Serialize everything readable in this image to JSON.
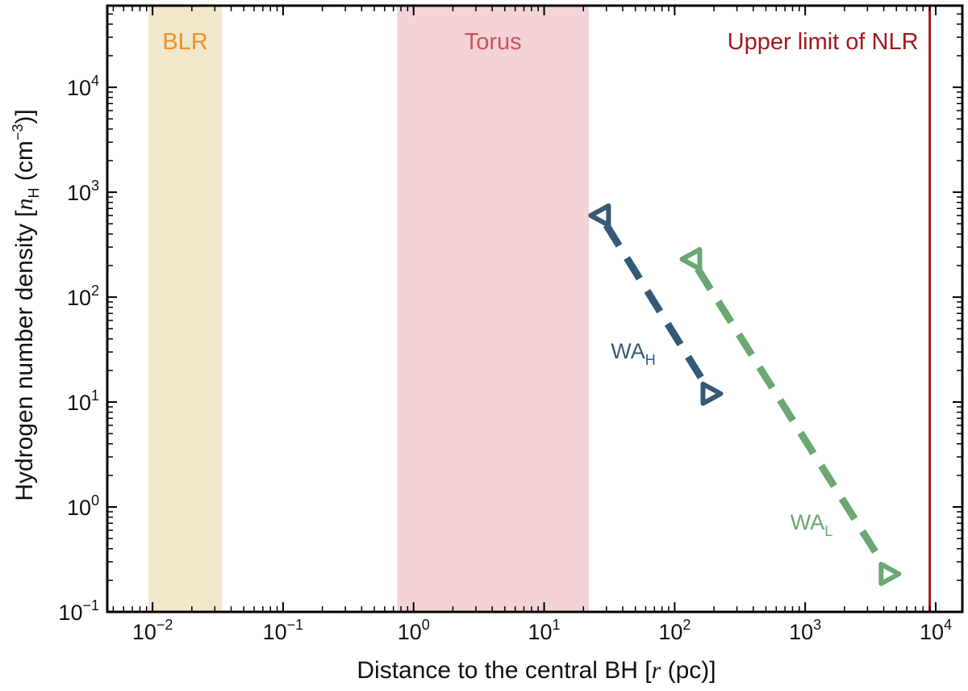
{
  "chart_data": {
    "type": "line",
    "xscale": "log",
    "yscale": "log",
    "xlim": [
      0.0045,
      16000
    ],
    "ylim": [
      0.1,
      60000
    ],
    "xlabel": {
      "prefix": "Distance to the central BH [",
      "var": "r",
      "suffix": " (pc)]"
    },
    "ylabel": {
      "prefix": "Hydrogen number density [",
      "var": "n",
      "var_sub": "H",
      "mid": " (cm",
      "exp": "−3",
      "suffix": ")]"
    },
    "xticks": [
      {
        "value": 0.01,
        "base": "10",
        "exp": "−2"
      },
      {
        "value": 0.1,
        "base": "10",
        "exp": "−1"
      },
      {
        "value": 1,
        "base": "10",
        "exp": "0"
      },
      {
        "value": 10,
        "base": "10",
        "exp": "1"
      },
      {
        "value": 100,
        "base": "10",
        "exp": "2"
      },
      {
        "value": 1000,
        "base": "10",
        "exp": "3"
      },
      {
        "value": 10000,
        "base": "10",
        "exp": "4"
      }
    ],
    "yticks": [
      {
        "value": 0.1,
        "base": "10",
        "exp": "−1"
      },
      {
        "value": 1,
        "base": "10",
        "exp": "0"
      },
      {
        "value": 10,
        "base": "10",
        "exp": "1"
      },
      {
        "value": 100,
        "base": "10",
        "exp": "2"
      },
      {
        "value": 1000,
        "base": "10",
        "exp": "3"
      },
      {
        "value": 10000,
        "base": "10",
        "exp": "4"
      }
    ],
    "regions": [
      {
        "label": "BLR",
        "x_start": 0.0093,
        "x_end": 0.034,
        "fill": "#f1e7cb",
        "text_color": "#e8912a"
      },
      {
        "label": "Torus",
        "x_start": 0.75,
        "x_end": 22,
        "fill": "#f3d3d6",
        "text_color": "#c9545f"
      }
    ],
    "vline": {
      "label": "Upper limit of NLR",
      "x": 9000,
      "color": "#a3191f"
    },
    "series": [
      {
        "name": "WA",
        "name_sub": "H",
        "color": "#355a77",
        "x": [
          27,
          190
        ],
        "y": [
          600,
          12
        ]
      },
      {
        "name": "WA",
        "name_sub": "L",
        "color": "#6aa772",
        "x": [
          135,
          4400
        ],
        "y": [
          230,
          0.23
        ]
      }
    ]
  }
}
